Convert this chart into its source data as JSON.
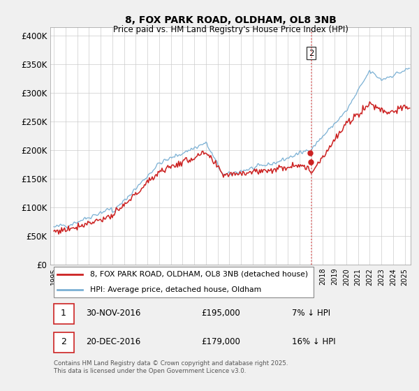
{
  "title": "8, FOX PARK ROAD, OLDHAM, OL8 3NB",
  "subtitle": "Price paid vs. HM Land Registry's House Price Index (HPI)",
  "ylabel_ticks": [
    "£0",
    "£50K",
    "£100K",
    "£150K",
    "£200K",
    "£250K",
    "£300K",
    "£350K",
    "£400K"
  ],
  "ytick_values": [
    0,
    50000,
    100000,
    150000,
    200000,
    250000,
    300000,
    350000,
    400000
  ],
  "ylim": [
    0,
    415000
  ],
  "xlim_start": 1994.7,
  "xlim_end": 2025.5,
  "legend_line1": "8, FOX PARK ROAD, OLDHAM, OL8 3NB (detached house)",
  "legend_line2": "HPI: Average price, detached house, Oldham",
  "vline_x": 2017.0,
  "vline_color": "#dd4444",
  "hpi_color": "#7ab0d4",
  "price_color": "#cc2222",
  "footnote": "Contains HM Land Registry data © Crown copyright and database right 2025.\nThis data is licensed under the Open Government Licence v3.0.",
  "bg_color": "#f0f0f0",
  "plot_bg_color": "#ffffff",
  "grid_color": "#cccccc",
  "sale1_date": "30-NOV-2016",
  "sale1_price": "£195,000",
  "sale1_hpi": "7% ↓ HPI",
  "sale2_date": "20-DEC-2016",
  "sale2_price": "£179,000",
  "sale2_hpi": "16% ↓ HPI",
  "sale1_y": 195000,
  "sale2_y": 179000,
  "sale1_x": 2016.92,
  "sale2_x": 2016.97
}
